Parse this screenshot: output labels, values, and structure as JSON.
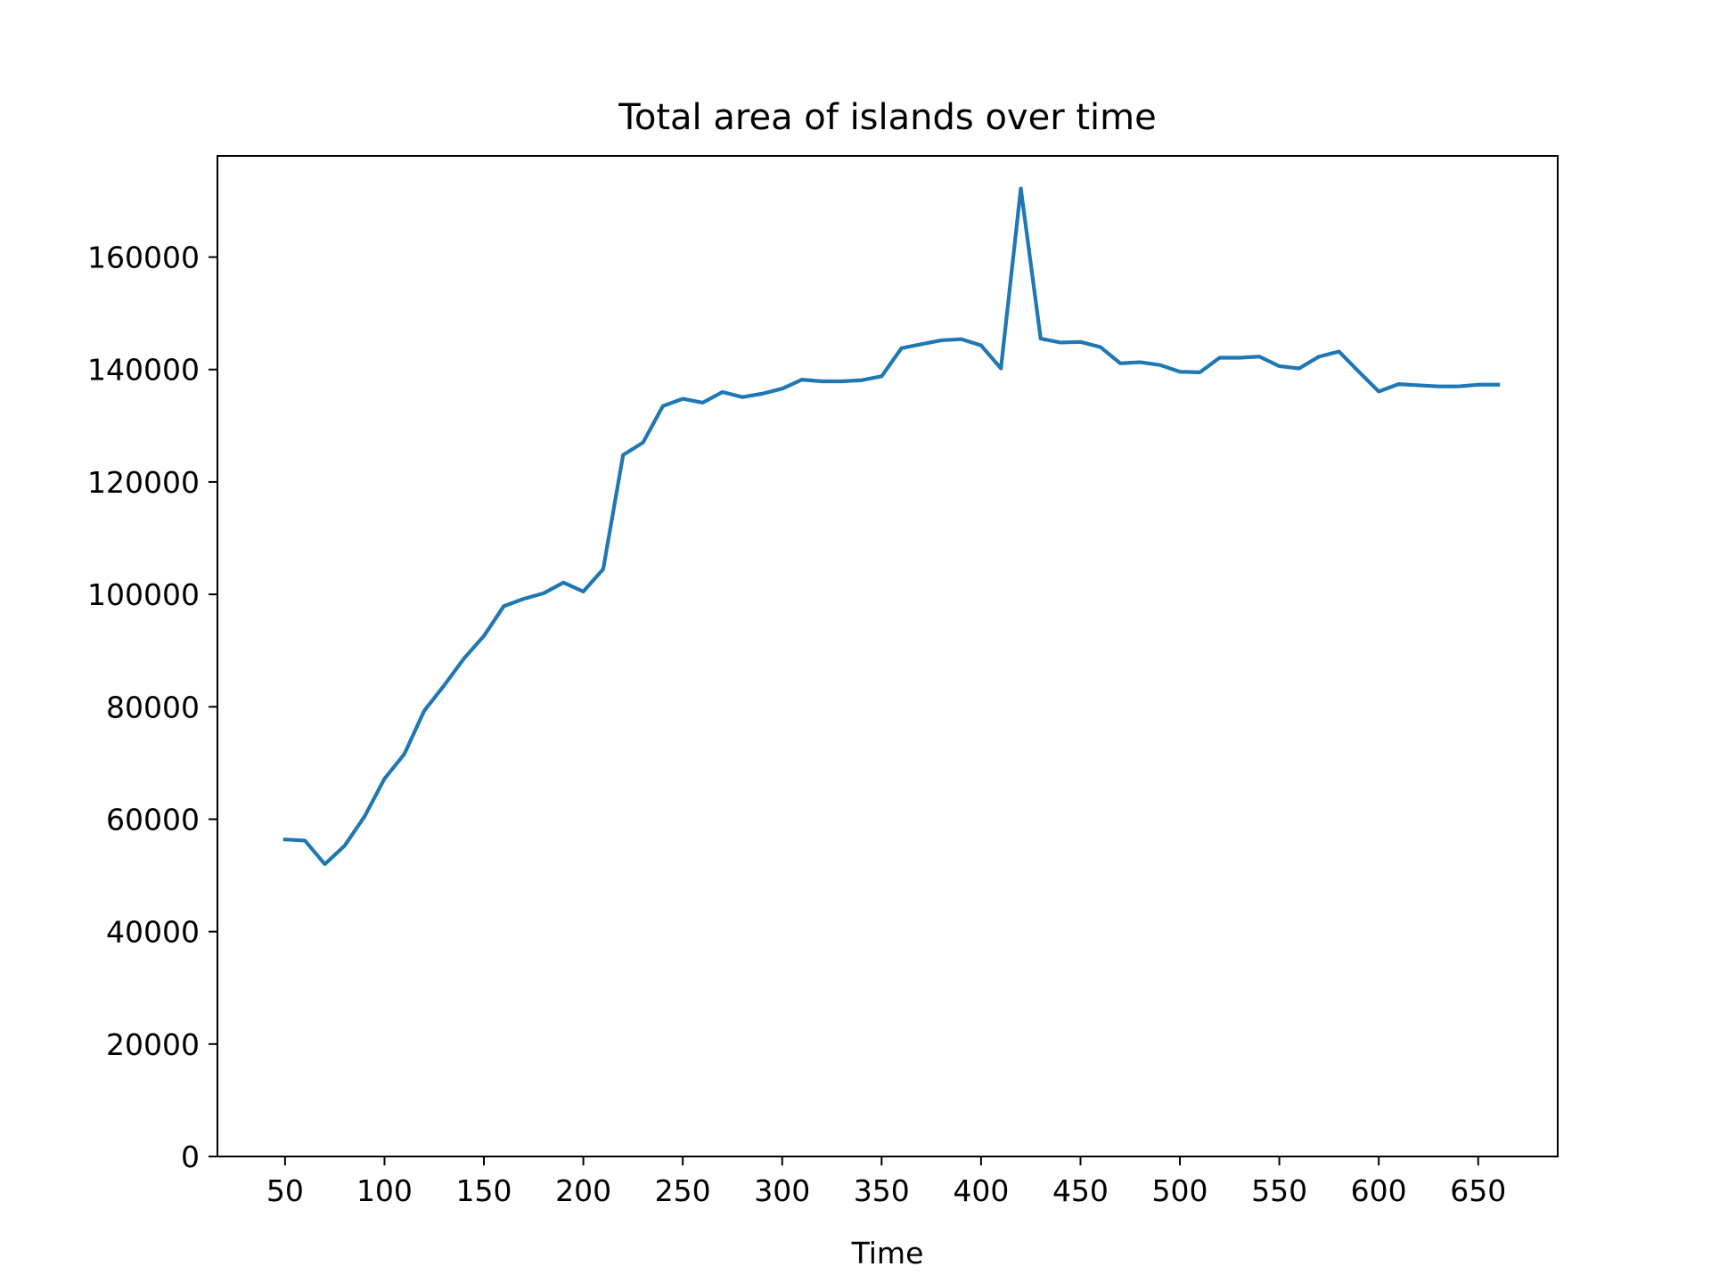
{
  "chart_data": {
    "type": "line",
    "title": "Total area of islands over time",
    "xlabel": "Time",
    "ylabel": "",
    "xlim": [
      16,
      690
    ],
    "ylim": [
      0,
      178000
    ],
    "xticks": [
      50,
      100,
      150,
      200,
      250,
      300,
      350,
      400,
      450,
      500,
      550,
      600,
      650
    ],
    "yticks": [
      0,
      20000,
      40000,
      60000,
      80000,
      100000,
      120000,
      140000,
      160000
    ],
    "grid": false,
    "legend": "none",
    "series": [
      {
        "color": "#1f77b4",
        "x": [
          50,
          60,
          70,
          80,
          90,
          100,
          110,
          120,
          130,
          140,
          150,
          160,
          170,
          180,
          190,
          200,
          210,
          220,
          230,
          240,
          250,
          260,
          270,
          280,
          290,
          300,
          310,
          320,
          330,
          340,
          350,
          360,
          370,
          380,
          390,
          400,
          410,
          420,
          430,
          440,
          450,
          460,
          470,
          480,
          490,
          500,
          510,
          520,
          530,
          540,
          550,
          560,
          570,
          580,
          590,
          600,
          610,
          620,
          630,
          640,
          650,
          660
        ],
        "y": [
          56400,
          56200,
          52000,
          55300,
          60500,
          67200,
          71600,
          79300,
          83800,
          88600,
          92600,
          97900,
          99200,
          100200,
          102100,
          100500,
          104500,
          124800,
          127000,
          133500,
          134800,
          134100,
          136000,
          135100,
          135700,
          136600,
          138200,
          137900,
          137900,
          138100,
          138800,
          143800,
          144500,
          145200,
          145400,
          144300,
          140200,
          172200,
          145500,
          144800,
          144900,
          144000,
          141100,
          141300,
          140800,
          139600,
          139500,
          142100,
          142100,
          142300,
          140600,
          140200,
          142300,
          143200,
          139600,
          136100,
          137400,
          137200,
          137000,
          137000,
          137300,
          137300
        ]
      }
    ]
  }
}
